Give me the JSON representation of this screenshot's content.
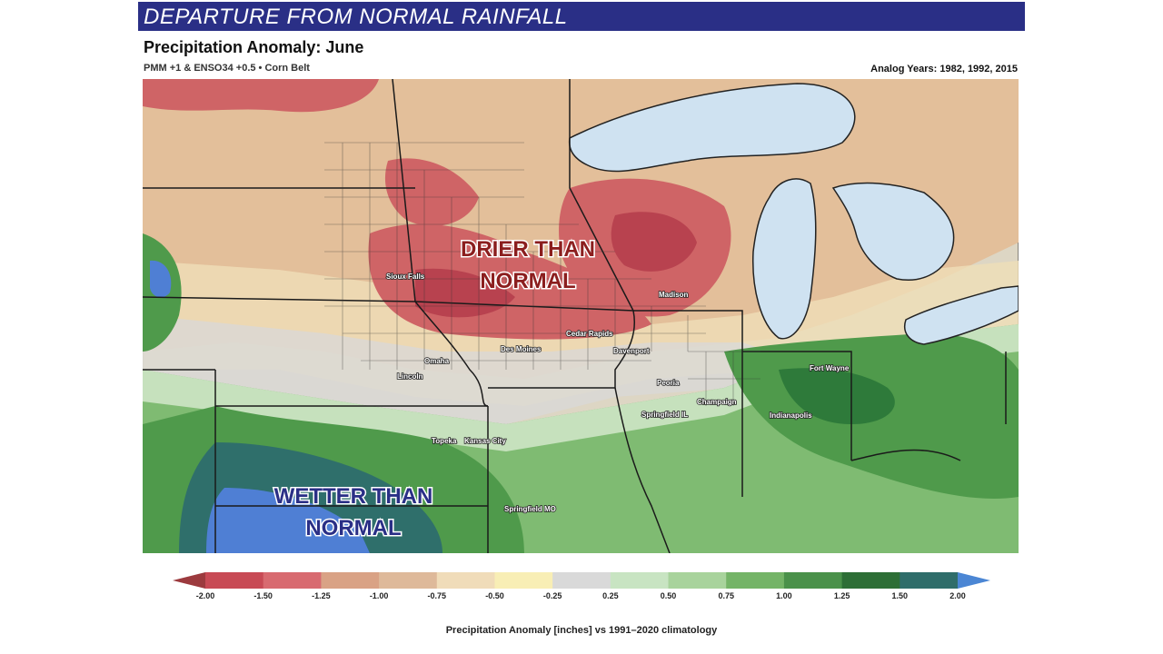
{
  "banner": {
    "text": "DEPARTURE FROM NORMAL RAINFALL",
    "color": "#2a2f86"
  },
  "header": {
    "title": "Precipitation Anomaly: June",
    "subtitle": "PMM +1 & ENSO34 +0.5 • Corn Belt",
    "analog_years": "Analog Years: 1982, 1992, 2015"
  },
  "map": {
    "region_labels": {
      "drier_line1": "DRIER THAN",
      "drier_line2": "NORMAL",
      "wetter_line1": "WETTER THAN",
      "wetter_line2": "NORMAL"
    },
    "cities": {
      "sioux_falls": "Sioux Falls",
      "madison": "Madison",
      "cedar_rapids": "Cedar Rapids",
      "des_moines": "Des Moines",
      "davenport": "Davenport",
      "omaha": "Omaha",
      "lincoln": "Lincoln",
      "peoria": "Peoria",
      "champaign": "Champaign",
      "springfield_il": "Springfield IL",
      "indianapolis": "Indianapolis",
      "fort_wayne": "Fort Wayne",
      "topeka": "Topeka",
      "kansas_city": "Kansas City",
      "springfield_mo": "Springfield MO"
    },
    "colors": {
      "lake": "#cfe2f1",
      "dry_strong": "#b8424f",
      "dry": "#cf6466",
      "dry_mid": "#d49679",
      "dry_light": "#e3bf9a",
      "dry_faint": "#efdfb8",
      "neutral_yellow": "#f4ebb3",
      "neutral_gray": "#d8d8d8",
      "wet_light": "#c6e1bd",
      "wet": "#7fbb72",
      "wet_mid": "#4f9a4b",
      "wet_strong": "#2e7a3a",
      "wet_teal": "#2f6f6b",
      "wet_blue": "#4f7fd4"
    }
  },
  "colorbar": {
    "ticks": [
      "-2.00",
      "-1.50",
      "-1.25",
      "-1.00",
      "-0.75",
      "-0.50",
      "-0.25",
      "0.25",
      "0.50",
      "0.75",
      "1.00",
      "1.25",
      "1.50",
      "2.00"
    ],
    "colors": [
      "#9c3a3e",
      "#c84a55",
      "#d86a70",
      "#d9a285",
      "#deb99a",
      "#f0dcb9",
      "#f8eeb5",
      "#d9d9d9",
      "#c8e4c2",
      "#a8d39c",
      "#74b467",
      "#4a914a",
      "#2d6e36",
      "#2f6d6a",
      "#4b86d4"
    ],
    "label": "Precipitation Anomaly [inches] vs 1991–2020 climatology"
  }
}
